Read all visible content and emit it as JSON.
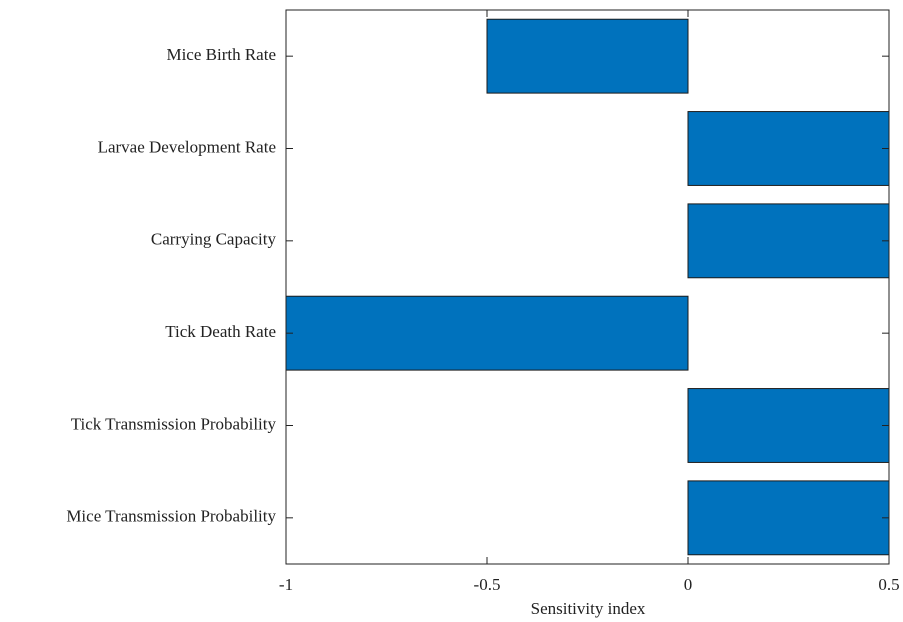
{
  "chart_data": {
    "type": "bar",
    "orientation": "horizontal",
    "categories": [
      "Mice Birth Rate",
      "Larvae Development Rate",
      "Carrying Capacity",
      "Tick Death Rate",
      "Tick Transmission Probability",
      "Mice Transmission Probability"
    ],
    "values": [
      -0.5,
      0.5,
      0.5,
      -1,
      0.5,
      0.5
    ],
    "xlabel": "Sensitivity index",
    "ylabel": "",
    "xlim": [
      -1,
      0.5
    ],
    "xticks": [
      -1,
      -0.5,
      0,
      0.5
    ],
    "xtick_labels": [
      "-1",
      "-0.5",
      "0",
      "0.5"
    ],
    "bar_color": "#0072bd",
    "grid": false,
    "legend": "none"
  }
}
